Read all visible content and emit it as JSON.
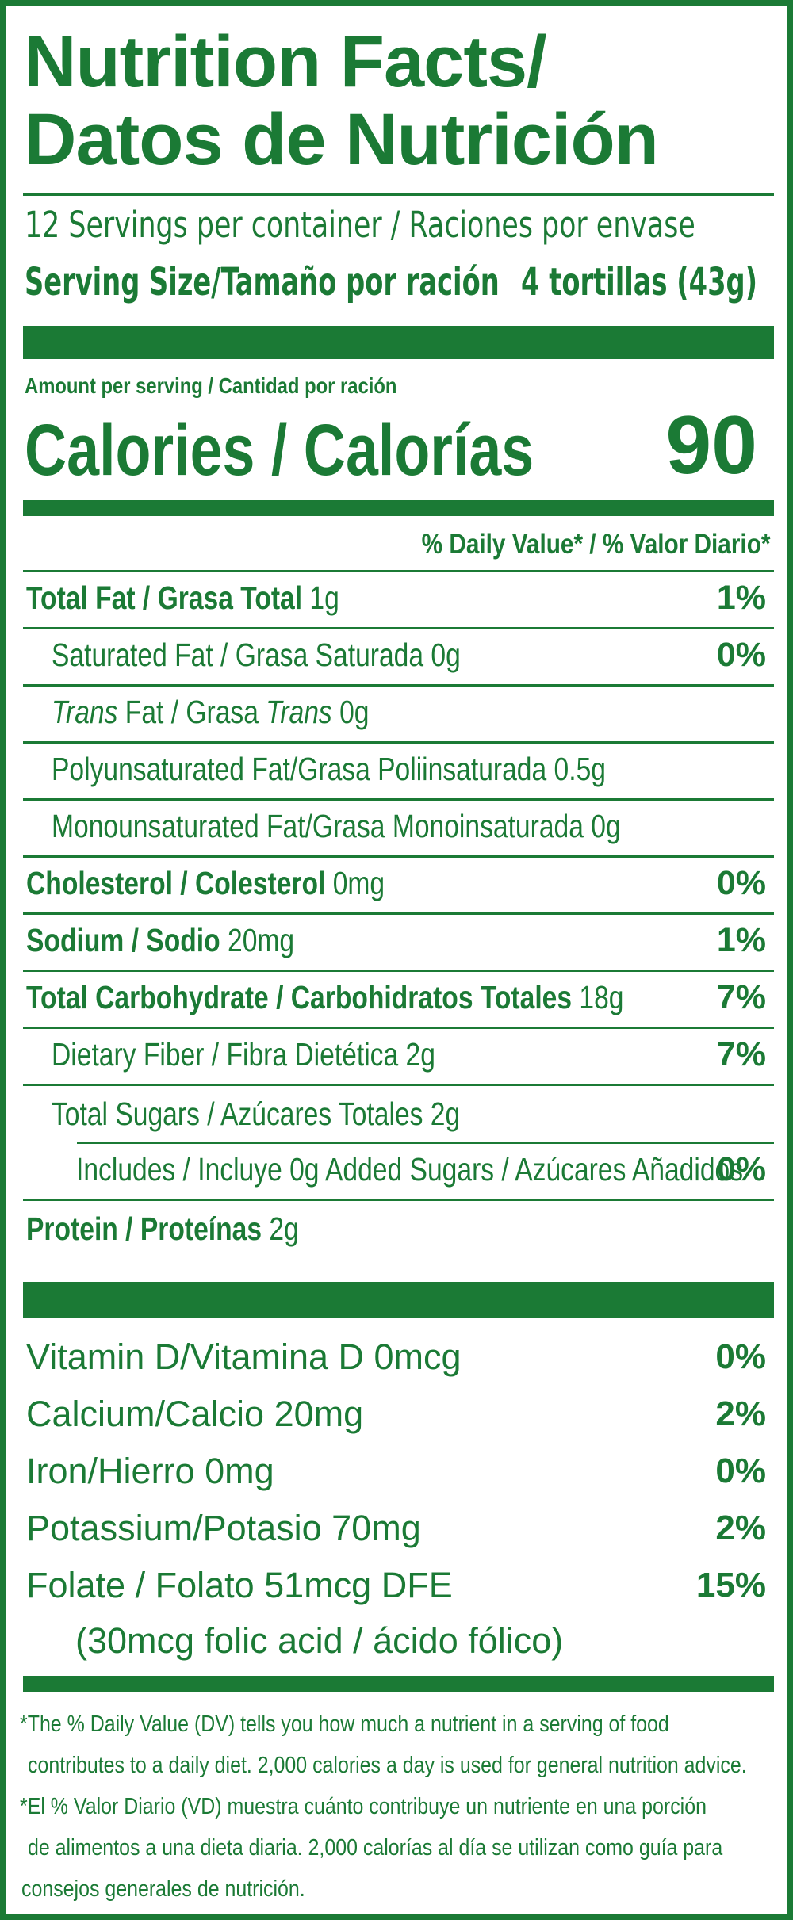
{
  "header": {
    "title_line1": "Nutrition Facts/",
    "title_line2": "Datos de Nutrición",
    "servings": "12 Servings per container / Raciones por envase",
    "serving_size_label": "Serving Size/Tamaño por ración",
    "serving_size_value": "4 tortillas (43g)"
  },
  "calories": {
    "amount_label": "Amount per serving / Cantidad por ración",
    "label": "Calories / Calorías",
    "value": "90"
  },
  "daily_value_header": "% Daily Value* / % Valor Diario*",
  "nutrients": [
    {
      "bold": "Total Fat / Grasa Total",
      "text": " 1g",
      "pct": "1%"
    },
    {
      "pre": "",
      "text": "Saturated Fat / Grasa Saturada 0g",
      "pct": "0%"
    },
    {
      "italic1": "Trans",
      "mid": " Fat / Grasa ",
      "italic2": "Trans",
      "text": " 0g",
      "pct": ""
    },
    {
      "text": "Polyunsaturated Fat/Grasa Poliinsaturada 0.5g",
      "pct": ""
    },
    {
      "text": "Monounsaturated Fat/Grasa Monoinsaturada 0g",
      "pct": ""
    },
    {
      "bold": "Cholesterol / Colesterol",
      "text": " 0mg",
      "pct": "0%"
    },
    {
      "bold": "Sodium / Sodio",
      "text": " 20mg",
      "pct": "1%"
    },
    {
      "bold": "Total Carbohydrate / Carbohidratos Totales",
      "text": " 18g",
      "pct": "7%"
    },
    {
      "text": "Dietary Fiber / Fibra Dietética 2g",
      "pct": "7%"
    },
    {
      "text": "Total Sugars / Azúcares Totales 2g",
      "pct": ""
    },
    {
      "text": "Includes / Incluye 0g Added Sugars / Azúcares Añadidos",
      "pct": "0%"
    },
    {
      "bold": "Protein / Proteínas",
      "text": " 2g",
      "pct": ""
    }
  ],
  "vitamins": [
    {
      "text": "Vitamin D/Vitamina D 0mcg",
      "pct": "0%"
    },
    {
      "text": "Calcium/Calcio 20mg",
      "pct": "2%"
    },
    {
      "text": "Iron/Hierro 0mg",
      "pct": "0%"
    },
    {
      "text": "Potassium/Potasio 70mg",
      "pct": "2%"
    },
    {
      "text": "Folate / Folato 51mcg DFE",
      "pct": "15%"
    }
  ],
  "folic_note": "(30mcg folic acid / ácido fólico)",
  "footnote": {
    "en_line1": "*The % Daily Value (DV) tells you how much a nutrient in a serving of food",
    "en_line2": "contributes to a daily diet. 2,000 calories a day is used for general nutrition advice.",
    "es_line1": "*El % Valor Diario (VD) muestra cuánto contribuye un nutriente en una porción",
    "es_line2": "de alimentos a una dieta diaria. 2,000 calorías al día se utilizan como guía para",
    "es_line3": "consejos generales de nutrición."
  },
  "colors": {
    "primary": "#1b7a35",
    "background": "#ffffff"
  }
}
